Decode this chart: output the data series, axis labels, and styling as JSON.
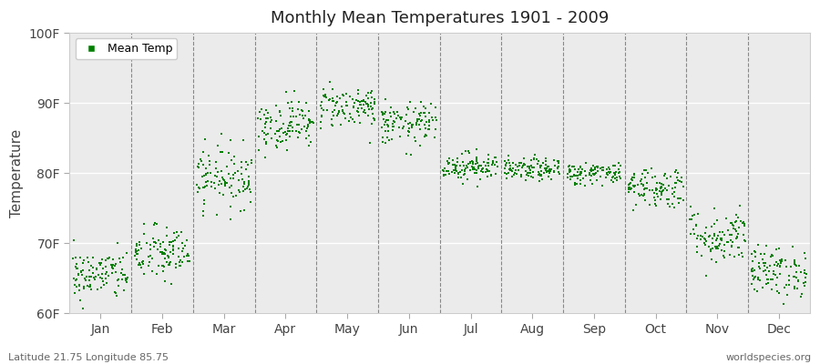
{
  "title": "Monthly Mean Temperatures 1901 - 2009",
  "ylabel": "Temperature",
  "xlabel_labels": [
    "Jan",
    "Feb",
    "Mar",
    "Apr",
    "May",
    "Jun",
    "Jul",
    "Aug",
    "Sep",
    "Oct",
    "Nov",
    "Dec"
  ],
  "ytick_labels": [
    "60F",
    "70F",
    "80F",
    "90F",
    "100F"
  ],
  "ytick_values": [
    60,
    70,
    80,
    90,
    100
  ],
  "ylim": [
    60,
    100
  ],
  "footer_left": "Latitude 21.75 Longitude 85.75",
  "footer_right": "worldspecies.org",
  "dot_color": "#008000",
  "legend_label": "Mean Temp",
  "background_color": "#ffffff",
  "plot_bg_color": "#ebebeb",
  "years": 109,
  "monthly_means": [
    65.5,
    68.5,
    79.5,
    87.0,
    89.5,
    87.0,
    81.0,
    80.5,
    80.0,
    78.0,
    71.0,
    66.0
  ],
  "monthly_stds": [
    1.8,
    2.0,
    2.2,
    1.8,
    1.5,
    1.5,
    1.0,
    0.8,
    0.8,
    1.5,
    2.0,
    1.8
  ]
}
